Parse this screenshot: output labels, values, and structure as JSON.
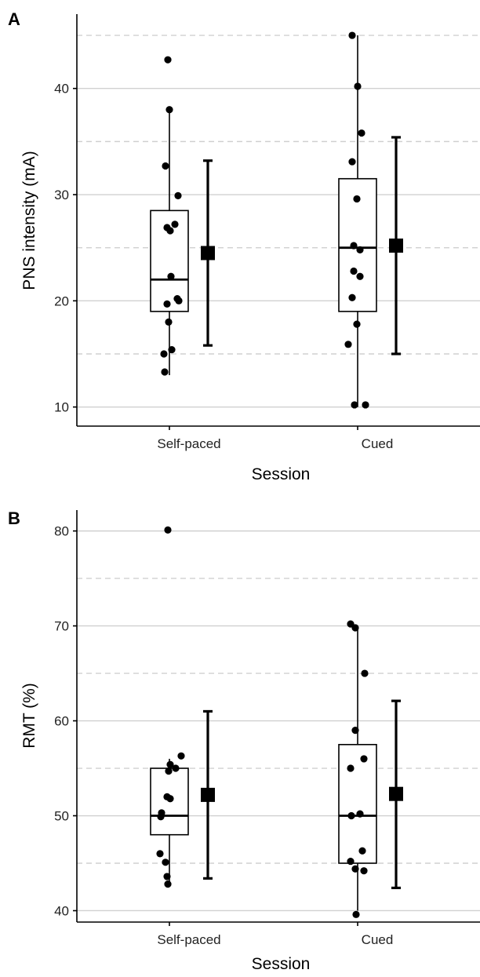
{
  "chart_data": [
    {
      "panel": "A",
      "type": "box",
      "xlabel": "Session",
      "ylabel": "PNS intensity (mA)",
      "categories": [
        "Self-paced",
        "Cued"
      ],
      "ylim": [
        8.2,
        47
      ],
      "yticks": [
        10,
        20,
        30,
        40
      ],
      "minor_grid": [
        15,
        25,
        35,
        45
      ],
      "groups": [
        {
          "name": "Self-paced",
          "box": {
            "lower_whisker": 13,
            "q1": 19,
            "median": 22,
            "q3": 28.5,
            "upper_whisker": 38
          },
          "points": [
            42.7,
            38.0,
            32.7,
            29.9,
            27.2,
            26.9,
            26.6,
            22.3,
            20.2,
            20.0,
            19.7,
            18.0,
            15.4,
            15.0,
            13.3
          ],
          "mean": 24.5,
          "error_bar": [
            15.8,
            33.2
          ]
        },
        {
          "name": "Cued",
          "box": {
            "lower_whisker": 10,
            "q1": 19,
            "median": 25,
            "q3": 31.5,
            "upper_whisker": 45
          },
          "points": [
            45.0,
            40.2,
            35.8,
            33.1,
            29.6,
            25.2,
            24.8,
            22.8,
            22.3,
            20.3,
            17.8,
            15.9,
            10.2,
            10.2
          ],
          "mean": 25.2,
          "error_bar": [
            15.0,
            35.4
          ]
        }
      ]
    },
    {
      "panel": "B",
      "type": "box",
      "xlabel": "Session",
      "ylabel": "RMT (%)",
      "categories": [
        "Self-paced",
        "Cued"
      ],
      "ylim": [
        38.8,
        82.2
      ],
      "yticks": [
        40,
        50,
        60,
        70,
        80
      ],
      "minor_grid": [
        45,
        55,
        65,
        75
      ],
      "groups": [
        {
          "name": "Self-paced",
          "box": {
            "lower_whisker": 43,
            "q1": 48,
            "median": 50,
            "q3": 55,
            "upper_whisker": 56
          },
          "points": [
            80.1,
            56.3,
            55.4,
            55.0,
            54.7,
            52.0,
            51.8,
            50.3,
            49.9,
            46.0,
            45.1,
            43.6,
            42.8
          ],
          "mean": 52.2,
          "error_bar": [
            43.4,
            61.0
          ]
        },
        {
          "name": "Cued",
          "box": {
            "lower_whisker": 40,
            "q1": 45,
            "median": 50,
            "q3": 57.5,
            "upper_whisker": 70
          },
          "points": [
            70.2,
            69.8,
            65.0,
            59.0,
            56.0,
            55.0,
            50.2,
            50.0,
            46.3,
            45.2,
            44.4,
            44.2,
            39.6
          ],
          "mean": 52.3,
          "error_bar": [
            42.4,
            62.1
          ]
        }
      ]
    }
  ]
}
